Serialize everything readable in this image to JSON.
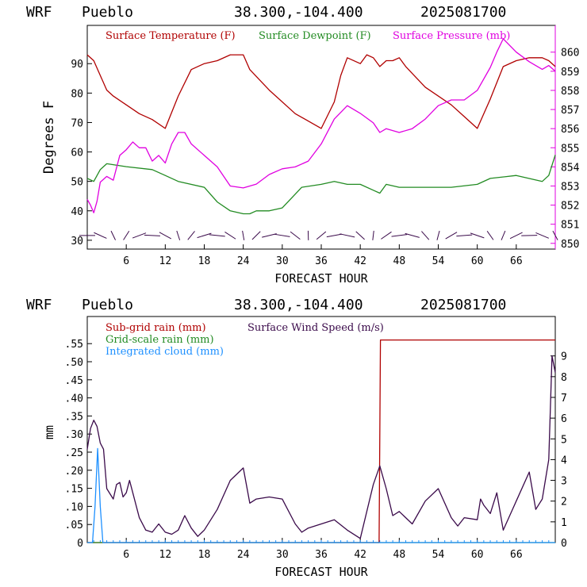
{
  "header": {
    "model": "WRF",
    "station": "Pueblo",
    "coords": "38.300,-104.400",
    "date": "2025081700"
  },
  "colors": {
    "temperature": "#b00000",
    "dewpoint": "#228b22",
    "pressure": "#e000e0",
    "subgrid": "#b00000",
    "gridscale": "#228b22",
    "cloud": "#1e90ff",
    "wind": "#3a0a4a"
  },
  "chart_data": [
    {
      "type": "line",
      "ylabel": "Degrees F",
      "xlabel": "FORECAST HOUR",
      "xlim": [
        0,
        72
      ],
      "ylim": [
        27,
        103
      ],
      "y2lim": [
        849.7,
        861.4
      ],
      "x_ticks": [
        6,
        12,
        18,
        24,
        30,
        36,
        42,
        48,
        54,
        60,
        66
      ],
      "x_tick_labels": [
        "6",
        "12",
        "18",
        "24",
        "30",
        "36",
        "42",
        "48",
        "54",
        "60",
        "66"
      ],
      "y_ticks": [
        30,
        40,
        50,
        60,
        70,
        80,
        90
      ],
      "y_tick_labels": [
        "30",
        "40",
        "50",
        "60",
        "70",
        "80",
        "90"
      ],
      "y2_ticks": [
        850,
        851,
        852,
        853,
        854,
        855,
        856,
        857,
        858,
        859,
        860
      ],
      "y2_tick_labels": [
        "850",
        "851",
        "852",
        "853",
        "854",
        "855",
        "856",
        "857",
        "858",
        "859",
        "860"
      ],
      "series": [
        {
          "name": "Surface Temperature (F)",
          "axis": "left",
          "x": [
            0,
            1,
            2,
            3,
            4,
            6,
            8,
            10,
            12,
            14,
            16,
            18,
            20,
            22,
            24,
            25,
            28,
            32,
            36,
            38,
            39,
            40,
            42,
            43,
            44,
            45,
            46,
            47,
            48,
            49,
            52,
            56,
            58,
            60,
            62,
            64,
            66,
            68,
            70,
            71,
            72
          ],
          "y": [
            93,
            91,
            86,
            81,
            79,
            76,
            73,
            71,
            68,
            79,
            88,
            90,
            91,
            93,
            93,
            88,
            81,
            73,
            68,
            77,
            86,
            92,
            90,
            93,
            92,
            89,
            91,
            91,
            92,
            89,
            82,
            76,
            72,
            68,
            78,
            89,
            91,
            92,
            92,
            91,
            89
          ]
        },
        {
          "name": "Surface Dewpoint (F)",
          "axis": "left",
          "x": [
            0,
            1,
            2,
            3,
            6,
            10,
            12,
            14,
            18,
            20,
            22,
            24,
            25,
            26,
            28,
            30,
            33,
            36,
            38,
            40,
            42,
            44,
            45,
            46,
            48,
            52,
            56,
            60,
            62,
            66,
            70,
            71,
            72
          ],
          "y": [
            51,
            50,
            54,
            56,
            55,
            54,
            52,
            50,
            48,
            43,
            40,
            39,
            39,
            40,
            40,
            41,
            48,
            49,
            50,
            49,
            49,
            47,
            46,
            49,
            48,
            48,
            48,
            49,
            51,
            52,
            50,
            52,
            59
          ]
        },
        {
          "name": "Surface Pressure (mb)",
          "axis": "right",
          "x": [
            0,
            0.5,
            1,
            1.5,
            2,
            3,
            4,
            5,
            6,
            7,
            8,
            9,
            10,
            11,
            12,
            13,
            14,
            15,
            16,
            18,
            20,
            22,
            24,
            26,
            28,
            30,
            32,
            34,
            36,
            38,
            40,
            42,
            44,
            45,
            46,
            48,
            50,
            52,
            54,
            56,
            58,
            60,
            62,
            63,
            64,
            66,
            68,
            70,
            71,
            72
          ],
          "y": [
            852.3,
            852.0,
            851.6,
            852.2,
            853.2,
            853.5,
            853.3,
            854.6,
            854.9,
            855.3,
            855.0,
            855.0,
            854.3,
            854.6,
            854.2,
            855.2,
            855.8,
            855.8,
            855.2,
            854.6,
            854.0,
            853.0,
            852.9,
            853.1,
            853.6,
            853.9,
            854.0,
            854.3,
            855.2,
            856.5,
            857.2,
            856.8,
            856.3,
            855.8,
            856.0,
            855.8,
            856.0,
            856.5,
            857.2,
            857.5,
            857.5,
            858.0,
            859.2,
            860.0,
            860.7,
            860.0,
            859.5,
            859.1,
            859.3,
            859.0
          ]
        }
      ],
      "wind_barbs_hours": [
        0,
        2,
        4,
        6,
        8,
        10,
        12,
        14,
        16,
        18,
        20,
        22,
        24,
        26,
        28,
        30,
        32,
        34,
        36,
        38,
        40,
        42,
        44,
        46,
        48,
        50,
        52,
        54,
        56,
        58,
        60,
        62,
        64,
        66,
        68,
        70,
        72
      ]
    },
    {
      "type": "line",
      "ylabel": "mm",
      "xlabel": "FORECAST HOUR",
      "xlim": [
        0,
        72
      ],
      "ylim": [
        0,
        0.625
      ],
      "y2lim": [
        0,
        10.9
      ],
      "x_ticks": [
        6,
        12,
        18,
        24,
        30,
        36,
        42,
        48,
        54,
        60,
        66
      ],
      "x_tick_labels": [
        "6",
        "12",
        "18",
        "24",
        "30",
        "36",
        "42",
        "48",
        "54",
        "60",
        "66"
      ],
      "y_ticks": [
        0,
        0.05,
        0.1,
        0.15,
        0.2,
        0.25,
        0.3,
        0.35,
        0.4,
        0.45,
        0.5,
        0.55
      ],
      "y_tick_labels": [
        "0",
        ".05",
        ".10",
        ".15",
        ".20",
        ".25",
        ".30",
        ".35",
        ".40",
        ".45",
        ".50",
        ".55"
      ],
      "y2_ticks": [
        0,
        1,
        2,
        3,
        4,
        5,
        6,
        7,
        8,
        9
      ],
      "y2_tick_labels": [
        "0",
        "1",
        "2",
        "3",
        "4",
        "5",
        "6",
        "7",
        "8",
        "9"
      ],
      "series": [
        {
          "name": "Sub-grid rain (mm)",
          "axis": "left",
          "x": [
            0,
            44.9,
            45.1,
            72
          ],
          "y": [
            0,
            0,
            0.56,
            0.56
          ]
        },
        {
          "name": "Grid-scale rain (mm)",
          "axis": "left",
          "x": [
            0,
            72
          ],
          "y": [
            0,
            0
          ]
        },
        {
          "name": "Integrated cloud (mm)",
          "axis": "left",
          "x": [
            0,
            0.8,
            1.2,
            1.6,
            2.0,
            2.4,
            72
          ],
          "y": [
            0,
            0,
            0.1,
            0.26,
            0.1,
            0,
            0
          ]
        },
        {
          "name": "Surface Wind Speed (m/s)",
          "axis": "right",
          "x": [
            0,
            0.5,
            1,
            1.5,
            2,
            2.5,
            3,
            4,
            4.5,
            5,
            5.5,
            6,
            6.5,
            7,
            8,
            9,
            10,
            11,
            12,
            13,
            14,
            15,
            16,
            17,
            18,
            20,
            22,
            24,
            25,
            26,
            28,
            30,
            32,
            33,
            34,
            36,
            38,
            40,
            42,
            44,
            45,
            46,
            47,
            48,
            50,
            52,
            54,
            56,
            57,
            58,
            60,
            60.5,
            61,
            62,
            63,
            64,
            66,
            68,
            69,
            70,
            71,
            71.5,
            72
          ],
          "y": [
            4.5,
            5.5,
            5.9,
            5.6,
            4.8,
            4.5,
            2.6,
            2.1,
            2.8,
            2.9,
            2.2,
            2.4,
            3.0,
            2.4,
            1.2,
            0.6,
            0.5,
            0.9,
            0.5,
            0.4,
            0.6,
            1.3,
            0.7,
            0.3,
            0.6,
            1.6,
            3.0,
            3.6,
            1.9,
            2.1,
            2.2,
            2.1,
            0.9,
            0.5,
            0.7,
            0.9,
            1.1,
            0.6,
            0.2,
            2.8,
            3.7,
            2.6,
            1.3,
            1.5,
            0.9,
            2.0,
            2.6,
            1.2,
            0.8,
            1.2,
            1.1,
            2.1,
            1.8,
            1.4,
            2.4,
            0.6,
            2.0,
            3.4,
            1.6,
            2.1,
            4.0,
            9.0,
            8.2
          ]
        }
      ]
    }
  ]
}
